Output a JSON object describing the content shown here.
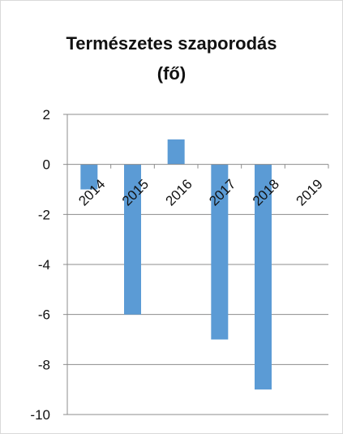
{
  "chart_data": {
    "type": "bar",
    "title_lines": [
      "Természetes szaporodás",
      "(fő)"
    ],
    "categories": [
      "2014",
      "2015",
      "2016",
      "2017",
      "2018",
      "2019"
    ],
    "values": [
      -1,
      -6,
      1,
      -7,
      -9,
      0
    ],
    "ylim": [
      -10,
      2
    ],
    "yticks": [
      "2",
      "0",
      "-2",
      "-4",
      "-6",
      "-8",
      "-10"
    ],
    "grid": true,
    "legend": "none",
    "bar_color": "#5b9bd5"
  }
}
